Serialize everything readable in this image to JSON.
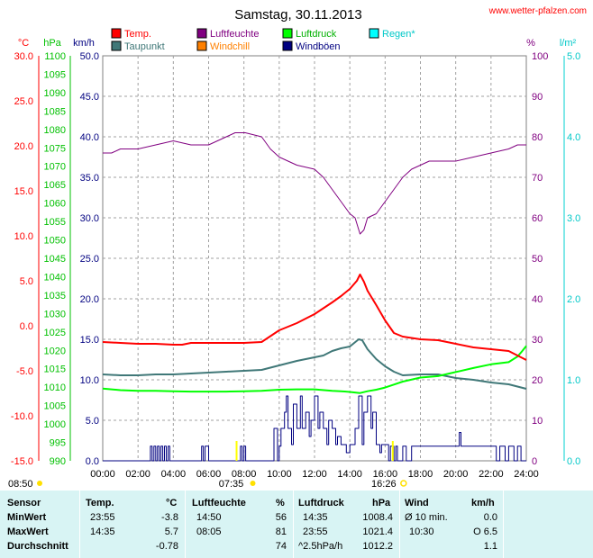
{
  "header": {
    "title": "Samstag, 30.11.2013",
    "site": "www.wetter-pfalzen.com"
  },
  "legend": [
    {
      "label": "Temp.",
      "color": "#ff0000"
    },
    {
      "label": "Luftfeuchte",
      "color": "#800080"
    },
    {
      "label": "Luftdruck",
      "color": "#00ff00"
    },
    {
      "label": "Regen*",
      "color": "#00ffff"
    },
    {
      "label": "Taupunkt",
      "color": "#407878"
    },
    {
      "label": "Windchill",
      "color": "#ff8000"
    },
    {
      "label": "Windböen",
      "color": "#000080"
    }
  ],
  "axes": {
    "units": {
      "temp": "°C",
      "pressure": "hPa",
      "wind": "km/h",
      "humidity": "%",
      "rain": "l/m²"
    },
    "temp_ticks": [
      "30.0",
      "25.0",
      "20.0",
      "15.0",
      "10.0",
      "5.0",
      "0.0",
      "-5.0",
      "-10.0",
      "-15.0"
    ],
    "pressure_ticks": [
      "1100",
      "1095",
      "1090",
      "1085",
      "1080",
      "1075",
      "1070",
      "1065",
      "1060",
      "1055",
      "1050",
      "1045",
      "1040",
      "1035",
      "1030",
      "1025",
      "1020",
      "1015",
      "1010",
      "1005",
      "1000",
      "995",
      "990"
    ],
    "wind_ticks": [
      "50.0",
      "45.0",
      "40.0",
      "35.0",
      "30.0",
      "25.0",
      "20.0",
      "15.0",
      "10.0",
      "5.0",
      "0.0"
    ],
    "humidity_ticks": [
      "100",
      "90",
      "80",
      "70",
      "60",
      "50",
      "40",
      "30",
      "20",
      "10",
      "0"
    ],
    "rain_ticks": [
      "5.0",
      "4.0",
      "3.0",
      "2.0",
      "1.0",
      "0.0"
    ],
    "time_ticks": [
      "00:00",
      "02:00",
      "04:00",
      "06:00",
      "08:00",
      "10:00",
      "12:00",
      "14:00",
      "16:00",
      "18:00",
      "20:00",
      "22:00",
      "24:00"
    ],
    "sunrise": "07:35",
    "sunset": "16:26",
    "sunshine_duration": "08:50"
  },
  "chart_data": {
    "type": "line",
    "x_range": [
      0,
      24
    ],
    "grid": true,
    "series": [
      {
        "name": "Temp.",
        "axis": "temp",
        "color": "#ff0000",
        "x": [
          0,
          1,
          2,
          3,
          4,
          4.5,
          5,
          6,
          7,
          8,
          9,
          10,
          11,
          12,
          13,
          13.5,
          14,
          14.4,
          14.58,
          14.8,
          15,
          15.5,
          16,
          16.5,
          17,
          18,
          19,
          20,
          21,
          22,
          23,
          24
        ],
        "y": [
          -1.8,
          -1.9,
          -2.0,
          -2.0,
          -2.1,
          -2.1,
          -1.9,
          -1.9,
          -1.9,
          -1.9,
          -1.8,
          -0.5,
          0.3,
          1.3,
          2.6,
          3.3,
          4.1,
          5.0,
          5.7,
          4.9,
          3.9,
          2.3,
          0.6,
          -0.8,
          -1.2,
          -1.5,
          -1.6,
          -2.0,
          -2.4,
          -2.6,
          -2.8,
          -3.8
        ]
      },
      {
        "name": "Taupunkt",
        "axis": "temp",
        "color": "#407878",
        "x": [
          0,
          1,
          2,
          3,
          4,
          5,
          6,
          7,
          8,
          9,
          10,
          11,
          12,
          12.5,
          13,
          13.5,
          14,
          14.5,
          14.7,
          15,
          15.5,
          16,
          16.5,
          17,
          18,
          19,
          20,
          21,
          22,
          23,
          24
        ],
        "y": [
          -5.4,
          -5.5,
          -5.5,
          -5.4,
          -5.4,
          -5.3,
          -5.2,
          -5.1,
          -5.0,
          -4.9,
          -4.4,
          -3.9,
          -3.5,
          -3.3,
          -2.8,
          -2.5,
          -2.3,
          -1.5,
          -1.6,
          -2.6,
          -3.7,
          -4.5,
          -5.1,
          -5.5,
          -5.4,
          -5.4,
          -5.8,
          -6.0,
          -6.3,
          -6.5,
          -7.0
        ]
      },
      {
        "name": "Luftfeuchte",
        "axis": "humidity",
        "color": "#800080",
        "x": [
          0,
          0.5,
          1,
          2,
          3,
          4,
          5,
          6,
          7,
          7.5,
          8,
          8.08,
          9,
          9.5,
          10,
          11,
          12,
          12.5,
          13,
          13.5,
          14,
          14.3,
          14.58,
          14.8,
          15,
          15.5,
          16,
          16.5,
          17,
          17.5,
          18,
          18.5,
          19,
          20,
          21,
          22,
          23,
          23.5,
          24
        ],
        "y": [
          76,
          76,
          77,
          77,
          78,
          79,
          78,
          78,
          80,
          81,
          81,
          81,
          80,
          77,
          75,
          73,
          72,
          70,
          67,
          64,
          61,
          60,
          56,
          57,
          60,
          61,
          64,
          67,
          70,
          72,
          73,
          74,
          74,
          74,
          75,
          76,
          77,
          78,
          78
        ]
      },
      {
        "name": "Luftdruck",
        "axis": "pressure",
        "color": "#00ff00",
        "x": [
          0,
          0.5,
          1,
          2,
          3,
          4,
          5,
          6,
          7,
          8,
          9,
          10,
          11,
          12,
          13,
          13.5,
          14,
          14.58,
          15,
          15.5,
          16,
          16.5,
          17,
          18,
          19,
          20,
          21,
          22,
          23,
          23.5,
          23.75,
          24
        ],
        "y": [
          1009.6,
          1009.4,
          1009.2,
          1009.0,
          1009.0,
          1008.9,
          1008.8,
          1008.8,
          1008.8,
          1008.9,
          1009.0,
          1009.3,
          1009.4,
          1009.4,
          1009.0,
          1008.9,
          1008.7,
          1008.4,
          1008.9,
          1009.3,
          1009.9,
          1010.7,
          1011.5,
          1012.6,
          1013.0,
          1014.1,
          1015.2,
          1016.2,
          1016.8,
          1018.3,
          1019.7,
          1021.2
        ]
      },
      {
        "name": "Windböen",
        "axis": "wind",
        "color": "#000080",
        "x": [
          0,
          1,
          1.5,
          2.6,
          2.7,
          2.8,
          2.9,
          3.0,
          3.1,
          3.2,
          3.3,
          3.4,
          3.5,
          3.6,
          3.7,
          3.8,
          4.0,
          5,
          5.5,
          5.6,
          5.7,
          5.8,
          6.0,
          7,
          7.7,
          7.8,
          7.9,
          8.0,
          8.1,
          9.0,
          9.5,
          9.7,
          9.9,
          10.0,
          10.1,
          10.3,
          10.4,
          10.5,
          10.7,
          10.8,
          11.0,
          11.2,
          11.3,
          11.5,
          11.7,
          11.8,
          12.0,
          12.2,
          12.3,
          12.5,
          12.7,
          12.8,
          13.0,
          13.2,
          13.3,
          13.5,
          13.8,
          14.0,
          14.3,
          14.5,
          14.7,
          14.8,
          15.0,
          15.2,
          15.3,
          15.5,
          15.7,
          15.8,
          16.0,
          16.2,
          16.3,
          16.5,
          16.6,
          16.7,
          17.0,
          17.2,
          17.5,
          17.7,
          18.0,
          18.3,
          18.5,
          18.7,
          19.0,
          19.3,
          19.5,
          19.7,
          19.8,
          20.0,
          20.2,
          20.3,
          20.5,
          21.0,
          21.5,
          22.0,
          22.3,
          22.5,
          22.8,
          23.0,
          23.3,
          23.5,
          23.7,
          24.0
        ],
        "y": [
          0,
          0,
          0,
          0,
          1.8,
          0,
          1.8,
          0,
          1.8,
          0,
          1.8,
          0,
          1.8,
          0,
          1.8,
          0,
          0,
          0,
          0,
          1.8,
          0,
          1.8,
          0,
          0,
          0,
          1.8,
          0,
          1.8,
          0,
          0,
          0,
          4,
          0,
          1.8,
          4,
          6,
          8,
          4,
          2,
          7,
          4,
          8,
          4,
          6,
          3,
          5,
          8,
          4,
          6,
          4,
          2,
          5,
          4,
          2,
          3,
          2,
          1,
          2,
          4,
          8,
          2,
          6,
          8,
          4,
          6,
          2,
          1,
          2,
          2,
          0,
          1.8,
          0,
          1.8,
          0,
          1.8,
          0,
          1.8,
          1.8,
          1.8,
          1.8,
          1.8,
          1.8,
          1.8,
          1.8,
          1.8,
          1.8,
          1.8,
          1.8,
          3.5,
          1.8,
          1.8,
          1.8,
          1.8,
          1.8,
          0,
          1.8,
          0,
          1.8,
          0,
          1.8,
          0,
          0
        ]
      }
    ]
  },
  "stats": {
    "headers": {
      "sensor": "Sensor",
      "temp": "Temp.",
      "temp_unit": "°C",
      "hum": "Luftfeuchte",
      "hum_unit": "%",
      "press": "Luftdruck",
      "press_unit": "hPa",
      "wind": "Wind",
      "wind_unit": "km/h"
    },
    "rows": [
      {
        "label": "MinWert",
        "temp_time": "23:55",
        "temp_val": "-3.8",
        "hum_time": "14:50",
        "hum_val": "56",
        "press_time": "14:35",
        "press_val": "1008.4",
        "wind_label": "Ø 10 min.",
        "wind_val": "0.0"
      },
      {
        "label": "MaxWert",
        "temp_time": "14:35",
        "temp_val": "5.7",
        "hum_time": "08:05",
        "hum_val": "81",
        "press_time": "23:55",
        "press_val": "1021.4",
        "wind_label": "10:30",
        "wind_val": "O 6.5"
      },
      {
        "label": "Durchschnitt",
        "temp_time": "",
        "temp_val": "-0.78",
        "hum_time": "",
        "hum_val": "74",
        "press_time": "^2.5hPa/h",
        "press_val": "1012.2",
        "wind_label": "",
        "wind_val": "1.1"
      }
    ]
  }
}
